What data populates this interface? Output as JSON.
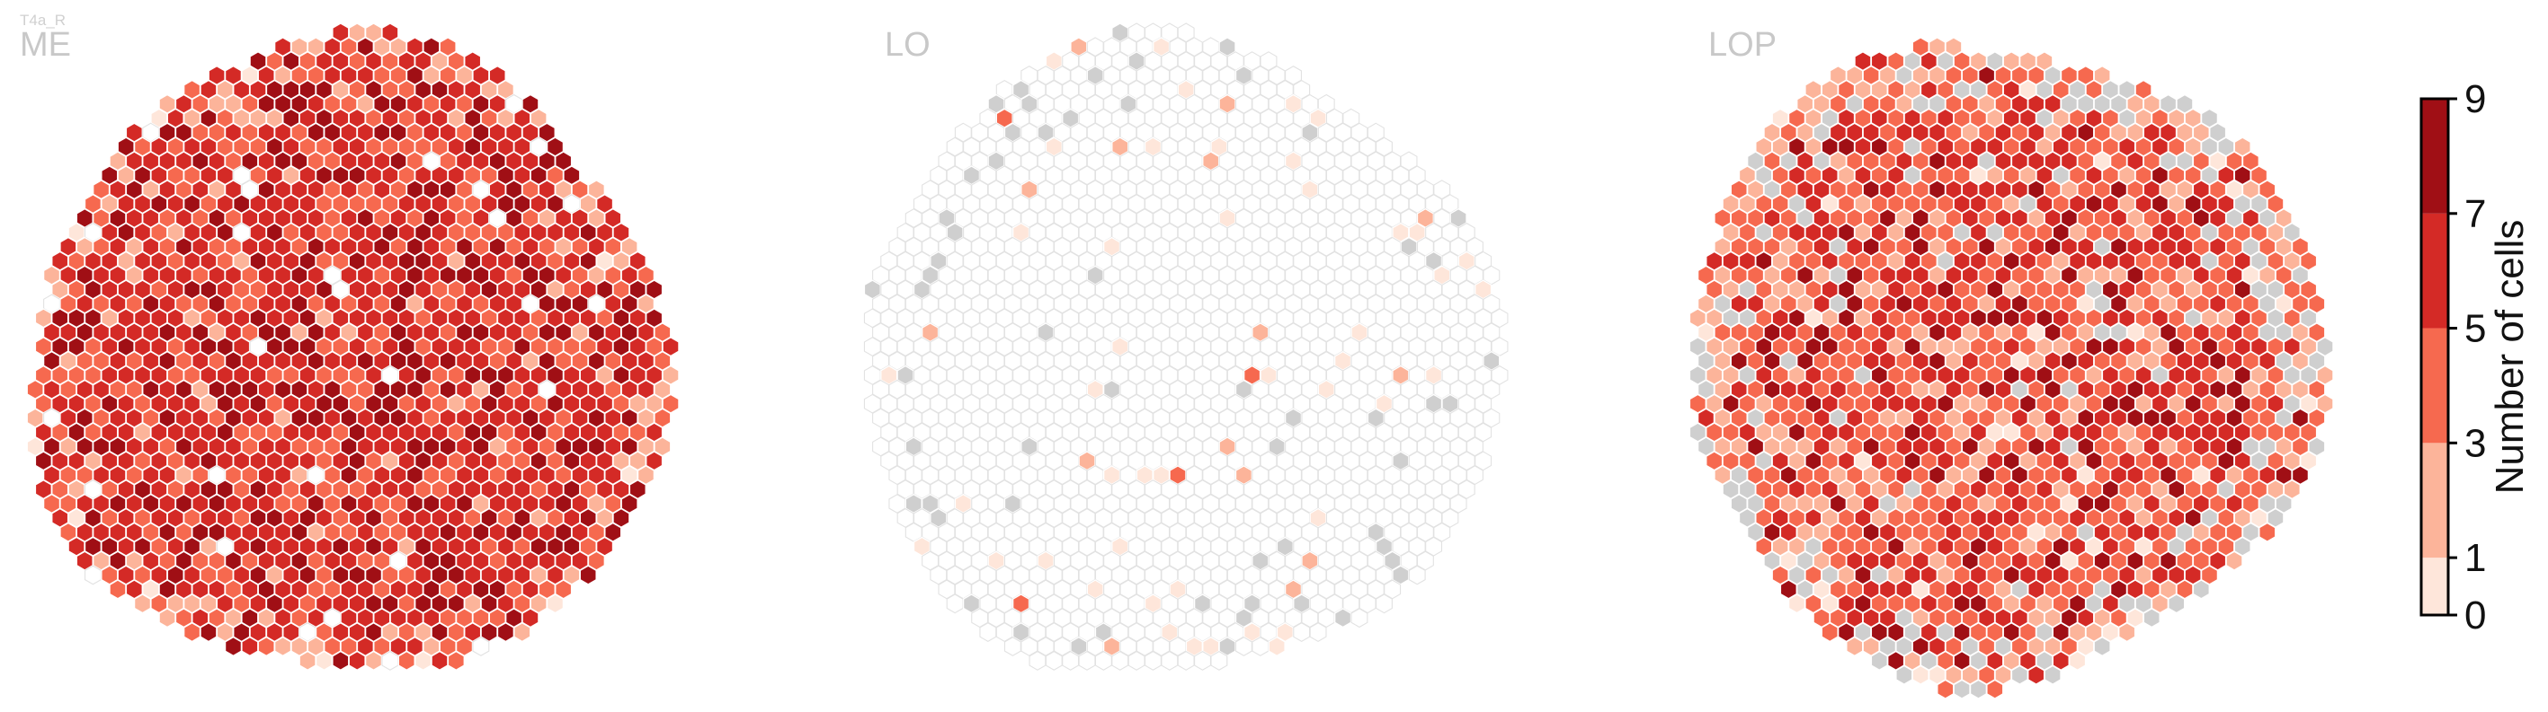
{
  "figure": {
    "cell_type": "T4a_R"
  },
  "chart_data": {
    "type": "heatmap",
    "cell_type": "T4a_R",
    "panels": [
      {
        "id": "ME",
        "title": "ME",
        "density": "high",
        "empty_fraction": 0.02,
        "nodata_fraction": 0.0,
        "weights": [
          0.0,
          0.04,
          0.26,
          0.44,
          0.26
        ]
      },
      {
        "id": "LO",
        "title": "LO",
        "density": "sparse",
        "empty_fraction": 0.95,
        "nodata_fraction": 0.035,
        "weights": [
          0.7,
          0.25,
          0.05,
          0.0,
          0.0
        ]
      },
      {
        "id": "LOP",
        "title": "LOP",
        "density": "medium",
        "empty_fraction": 0.0,
        "nodata_fraction": 0.1,
        "weights": [
          0.02,
          0.16,
          0.38,
          0.3,
          0.14
        ]
      }
    ],
    "colorbar": {
      "label": "Number of cells",
      "ticks": [
        0,
        1,
        3,
        5,
        7,
        9
      ],
      "bins": [
        {
          "from": 0,
          "to": 1,
          "color": "#fee6da"
        },
        {
          "from": 1,
          "to": 3,
          "color": "#fcb49a"
        },
        {
          "from": 3,
          "to": 5,
          "color": "#f6694f"
        },
        {
          "from": 5,
          "to": 7,
          "color": "#d42a26"
        },
        {
          "from": 7,
          "to": 9,
          "color": "#a00f15"
        }
      ]
    },
    "nodata_color": "#cfcfcf",
    "empty_stroke_color": "#e2e2e2",
    "cell_stroke_color": "#ffffff"
  }
}
